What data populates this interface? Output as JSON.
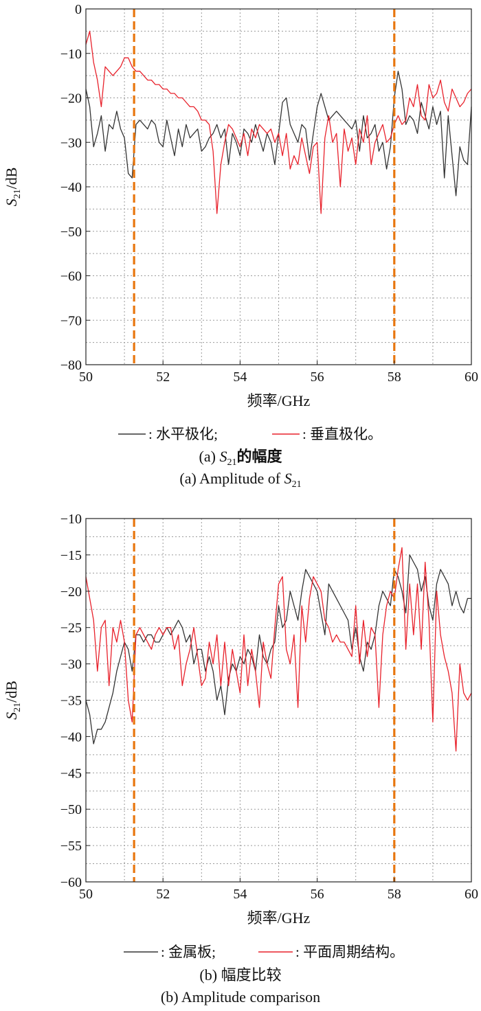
{
  "chart_data": [
    {
      "type": "line",
      "xlabel": "频率/GHz",
      "ylabel_main": "S",
      "ylabel_sub": "21",
      "ylabel_unit": "/dB",
      "xlim": [
        50,
        60
      ],
      "ylim": [
        -80,
        0
      ],
      "xticks": [
        50,
        52,
        54,
        56,
        58,
        60
      ],
      "yticks": [
        0,
        -10,
        -20,
        -30,
        -40,
        -50,
        -60,
        -70,
        -80
      ],
      "grid": true,
      "vlines": [
        51.25,
        58.0
      ],
      "legend": [
        {
          "label": ": 水平极化;",
          "color": "#333333"
        },
        {
          "label": ": 垂直极化。",
          "color": "#e8202a"
        }
      ],
      "caption_cn_prefix": "(a) ",
      "caption_cn_s": "S",
      "caption_cn_sub": "21",
      "caption_cn_suffix": "的幅度",
      "caption_en_prefix": "(a) Amplitude of ",
      "caption_en_s": "S",
      "caption_en_sub": "21",
      "series": [
        {
          "color": "#333333",
          "x": [
            50,
            50.1,
            50.2,
            50.3,
            50.4,
            50.5,
            50.6,
            50.7,
            50.8,
            50.9,
            51,
            51.1,
            51.2,
            51.3,
            51.4,
            51.5,
            51.6,
            51.7,
            51.8,
            51.9,
            52,
            52.1,
            52.2,
            52.3,
            52.4,
            52.5,
            52.6,
            52.7,
            52.8,
            52.9,
            53,
            53.1,
            53.2,
            53.3,
            53.4,
            53.5,
            53.6,
            53.7,
            53.8,
            53.9,
            54,
            54.1,
            54.2,
            54.3,
            54.4,
            54.5,
            54.6,
            54.7,
            54.8,
            54.9,
            55,
            55.1,
            55.2,
            55.3,
            55.4,
            55.5,
            55.6,
            55.7,
            55.8,
            55.9,
            56,
            56.1,
            56.2,
            56.3,
            56.4,
            56.5,
            56.6,
            56.7,
            56.8,
            56.9,
            57,
            57.1,
            57.2,
            57.3,
            57.4,
            57.5,
            57.6,
            57.7,
            57.8,
            57.9,
            58,
            58.1,
            58.2,
            58.3,
            58.4,
            58.5,
            58.6,
            58.7,
            58.8,
            58.9,
            59,
            59.1,
            59.2,
            59.3,
            59.4,
            59.5,
            59.6,
            59.7,
            59.8,
            59.9,
            60
          ],
          "y": [
            -18,
            -22,
            -31,
            -28,
            -24,
            -32,
            -26,
            -27,
            -23,
            -27,
            -29,
            -37,
            -38,
            -26,
            -25,
            -26,
            -27,
            -25,
            -26,
            -30,
            -31,
            -25,
            -29,
            -33,
            -27,
            -31,
            -26,
            -29,
            -28,
            -27,
            -32,
            -31,
            -29,
            -28,
            -26,
            -29,
            -27,
            -35,
            -28,
            -30,
            -33,
            -27,
            -28,
            -30,
            -26,
            -29,
            -32,
            -28,
            -30,
            -35,
            -28,
            -21,
            -20,
            -26,
            -28,
            -30,
            -26,
            -27,
            -34,
            -28,
            -22,
            -19,
            -22,
            -25,
            -24,
            -23,
            -24,
            -25,
            -26,
            -27,
            -25,
            -32,
            -24,
            -29,
            -28,
            -26,
            -32,
            -30,
            -36,
            -31,
            -20,
            -14,
            -18,
            -26,
            -24,
            -25,
            -28,
            -21,
            -24,
            -27,
            -22,
            -26,
            -23,
            -38,
            -24,
            -33,
            -42,
            -31,
            -34,
            -35,
            -22
          ]
        },
        {
          "color": "#e8202a",
          "x": [
            50,
            50.1,
            50.2,
            50.3,
            50.4,
            50.5,
            50.6,
            50.7,
            50.8,
            50.9,
            51,
            51.1,
            51.2,
            51.3,
            51.4,
            51.5,
            51.6,
            51.7,
            51.8,
            51.9,
            52,
            52.1,
            52.2,
            52.3,
            52.4,
            52.5,
            52.6,
            52.7,
            52.8,
            52.9,
            53,
            53.1,
            53.2,
            53.3,
            53.4,
            53.5,
            53.6,
            53.7,
            53.8,
            53.9,
            54,
            54.1,
            54.2,
            54.3,
            54.4,
            54.5,
            54.6,
            54.7,
            54.8,
            54.9,
            55,
            55.1,
            55.2,
            55.3,
            55.4,
            55.5,
            55.6,
            55.7,
            55.8,
            55.9,
            56,
            56.1,
            56.2,
            56.3,
            56.4,
            56.5,
            56.6,
            56.7,
            56.8,
            56.9,
            57,
            57.1,
            57.2,
            57.3,
            57.4,
            57.5,
            57.6,
            57.7,
            57.8,
            57.9,
            58,
            58.1,
            58.2,
            58.3,
            58.4,
            58.5,
            58.6,
            58.7,
            58.8,
            58.9,
            59,
            59.1,
            59.2,
            59.3,
            59.4,
            59.5,
            59.6,
            59.7,
            59.8,
            59.9,
            60
          ],
          "y": [
            -8,
            -5,
            -12,
            -16,
            -22,
            -13,
            -14,
            -15,
            -14,
            -13,
            -11,
            -11,
            -13,
            -14,
            -14,
            -15,
            -16,
            -16,
            -17,
            -17,
            -18,
            -18,
            -19,
            -19,
            -20,
            -20,
            -21,
            -22,
            -22,
            -23,
            -25,
            -25,
            -26,
            -32,
            -46,
            -35,
            -30,
            -26,
            -27,
            -29,
            -31,
            -28,
            -33,
            -27,
            -29,
            -26,
            -27,
            -28,
            -27,
            -30,
            -28,
            -33,
            -28,
            -36,
            -33,
            -35,
            -29,
            -33,
            -37,
            -31,
            -30,
            -46,
            -29,
            -24,
            -30,
            -28,
            -40,
            -27,
            -32,
            -29,
            -35,
            -27,
            -30,
            -24,
            -35,
            -30,
            -28,
            -26,
            -30,
            -29,
            -26,
            -24,
            -26,
            -25,
            -20,
            -22,
            -17,
            -24,
            -25,
            -17,
            -20,
            -19,
            -16,
            -21,
            -23,
            -18,
            -20,
            -22,
            -21,
            -19,
            -18
          ]
        }
      ]
    },
    {
      "type": "line",
      "xlabel": "频率/GHz",
      "ylabel_main": "S",
      "ylabel_sub": "21",
      "ylabel_unit": "/dB",
      "xlim": [
        50,
        60
      ],
      "ylim": [
        -60,
        -10
      ],
      "xticks": [
        50,
        52,
        54,
        56,
        58,
        60
      ],
      "yticks": [
        -10,
        -15,
        -20,
        -25,
        -30,
        -35,
        -40,
        -45,
        -50,
        -55,
        -60
      ],
      "grid": true,
      "vlines": [
        51.25,
        58.0
      ],
      "legend": [
        {
          "label": ": 金属板;",
          "color": "#333333"
        },
        {
          "label": ": 平面周期结构。",
          "color": "#e8202a"
        }
      ],
      "caption_cn": "(b) 幅度比较",
      "caption_en": "(b) Amplitude comparison",
      "series": [
        {
          "color": "#333333",
          "x": [
            50,
            50.1,
            50.2,
            50.3,
            50.4,
            50.5,
            50.6,
            50.7,
            50.8,
            50.9,
            51,
            51.1,
            51.2,
            51.3,
            51.4,
            51.5,
            51.6,
            51.7,
            51.8,
            51.9,
            52,
            52.1,
            52.2,
            52.3,
            52.4,
            52.5,
            52.6,
            52.7,
            52.8,
            52.9,
            53,
            53.1,
            53.2,
            53.3,
            53.4,
            53.5,
            53.6,
            53.7,
            53.8,
            53.9,
            54,
            54.1,
            54.2,
            54.3,
            54.4,
            54.5,
            54.6,
            54.7,
            54.8,
            54.9,
            55,
            55.1,
            55.2,
            55.3,
            55.4,
            55.5,
            55.6,
            55.7,
            55.8,
            55.9,
            56,
            56.1,
            56.2,
            56.3,
            56.4,
            56.5,
            56.6,
            56.7,
            56.8,
            56.9,
            57,
            57.1,
            57.2,
            57.3,
            57.4,
            57.5,
            57.6,
            57.7,
            57.8,
            57.9,
            58,
            58.1,
            58.2,
            58.3,
            58.4,
            58.5,
            58.6,
            58.7,
            58.8,
            58.9,
            59,
            59.1,
            59.2,
            59.3,
            59.4,
            59.5,
            59.6,
            59.7,
            59.8,
            59.9,
            60
          ],
          "y": [
            -35,
            -37,
            -41,
            -39,
            -39,
            -38,
            -36,
            -34,
            -31,
            -29,
            -27,
            -28,
            -31,
            -26,
            -26,
            -27,
            -26,
            -26,
            -27,
            -27,
            -26,
            -25,
            -26,
            -25,
            -24,
            -25,
            -27,
            -26,
            -30,
            -28,
            -28,
            -31,
            -29,
            -31,
            -35,
            -33,
            -37,
            -32,
            -30,
            -31,
            -29,
            -30,
            -28,
            -29,
            -31,
            -26,
            -29,
            -30,
            -28,
            -27,
            -22,
            -25,
            -24,
            -20,
            -22,
            -24,
            -20,
            -17,
            -18,
            -19,
            -20,
            -23,
            -26,
            -19,
            -20,
            -21,
            -22,
            -23,
            -24,
            -28,
            -25,
            -29,
            -31,
            -27,
            -28,
            -26,
            -22,
            -20,
            -21,
            -22,
            -17,
            -18,
            -20,
            -23,
            -15,
            -16,
            -17,
            -20,
            -18,
            -22,
            -24,
            -19,
            -17,
            -18,
            -19,
            -22,
            -20,
            -22,
            -23,
            -21,
            -21
          ]
        },
        {
          "color": "#e8202a",
          "x": [
            50,
            50.1,
            50.2,
            50.3,
            50.4,
            50.5,
            50.6,
            50.7,
            50.8,
            50.9,
            51,
            51.1,
            51.2,
            51.3,
            51.4,
            51.5,
            51.6,
            51.7,
            51.8,
            51.9,
            52,
            52.1,
            52.2,
            52.3,
            52.4,
            52.5,
            52.6,
            52.7,
            52.8,
            52.9,
            53,
            53.1,
            53.2,
            53.3,
            53.4,
            53.5,
            53.6,
            53.7,
            53.8,
            53.9,
            54,
            54.1,
            54.2,
            54.3,
            54.4,
            54.5,
            54.6,
            54.7,
            54.8,
            54.9,
            55,
            55.1,
            55.2,
            55.3,
            55.4,
            55.5,
            55.6,
            55.7,
            55.8,
            55.9,
            56,
            56.1,
            56.2,
            56.3,
            56.4,
            56.5,
            56.6,
            56.7,
            56.8,
            56.9,
            57,
            57.1,
            57.2,
            57.3,
            57.4,
            57.5,
            57.6,
            57.7,
            57.8,
            57.9,
            58,
            58.1,
            58.2,
            58.3,
            58.4,
            58.5,
            58.6,
            58.7,
            58.8,
            58.9,
            59,
            59.1,
            59.2,
            59.3,
            59.4,
            59.5,
            59.6,
            59.7,
            59.8,
            59.9,
            60
          ],
          "y": [
            -18,
            -21,
            -24,
            -31,
            -25,
            -24,
            -33,
            -25,
            -27,
            -24,
            -27,
            -35,
            -38,
            -26,
            -25,
            -26,
            -27,
            -28,
            -26,
            -25,
            -26,
            -25,
            -25,
            -28,
            -26,
            -33,
            -30,
            -28,
            -25,
            -29,
            -33,
            -32,
            -27,
            -30,
            -26,
            -33,
            -27,
            -33,
            -28,
            -31,
            -34,
            -26,
            -33,
            -28,
            -31,
            -36,
            -27,
            -30,
            -32,
            -25,
            -19,
            -18,
            -28,
            -30,
            -26,
            -36,
            -22,
            -27,
            -21,
            -18,
            -19,
            -20,
            -24,
            -25,
            -27,
            -26,
            -27,
            -27,
            -28,
            -29,
            -22,
            -30,
            -24,
            -29,
            -25,
            -26,
            -36,
            -26,
            -22,
            -20,
            -21,
            -17,
            -14,
            -28,
            -19,
            -26,
            -19,
            -28,
            -16,
            -24,
            -38,
            -20,
            -26,
            -29,
            -31,
            -34,
            -42,
            -30,
            -34,
            -35,
            -34
          ]
        }
      ]
    }
  ]
}
